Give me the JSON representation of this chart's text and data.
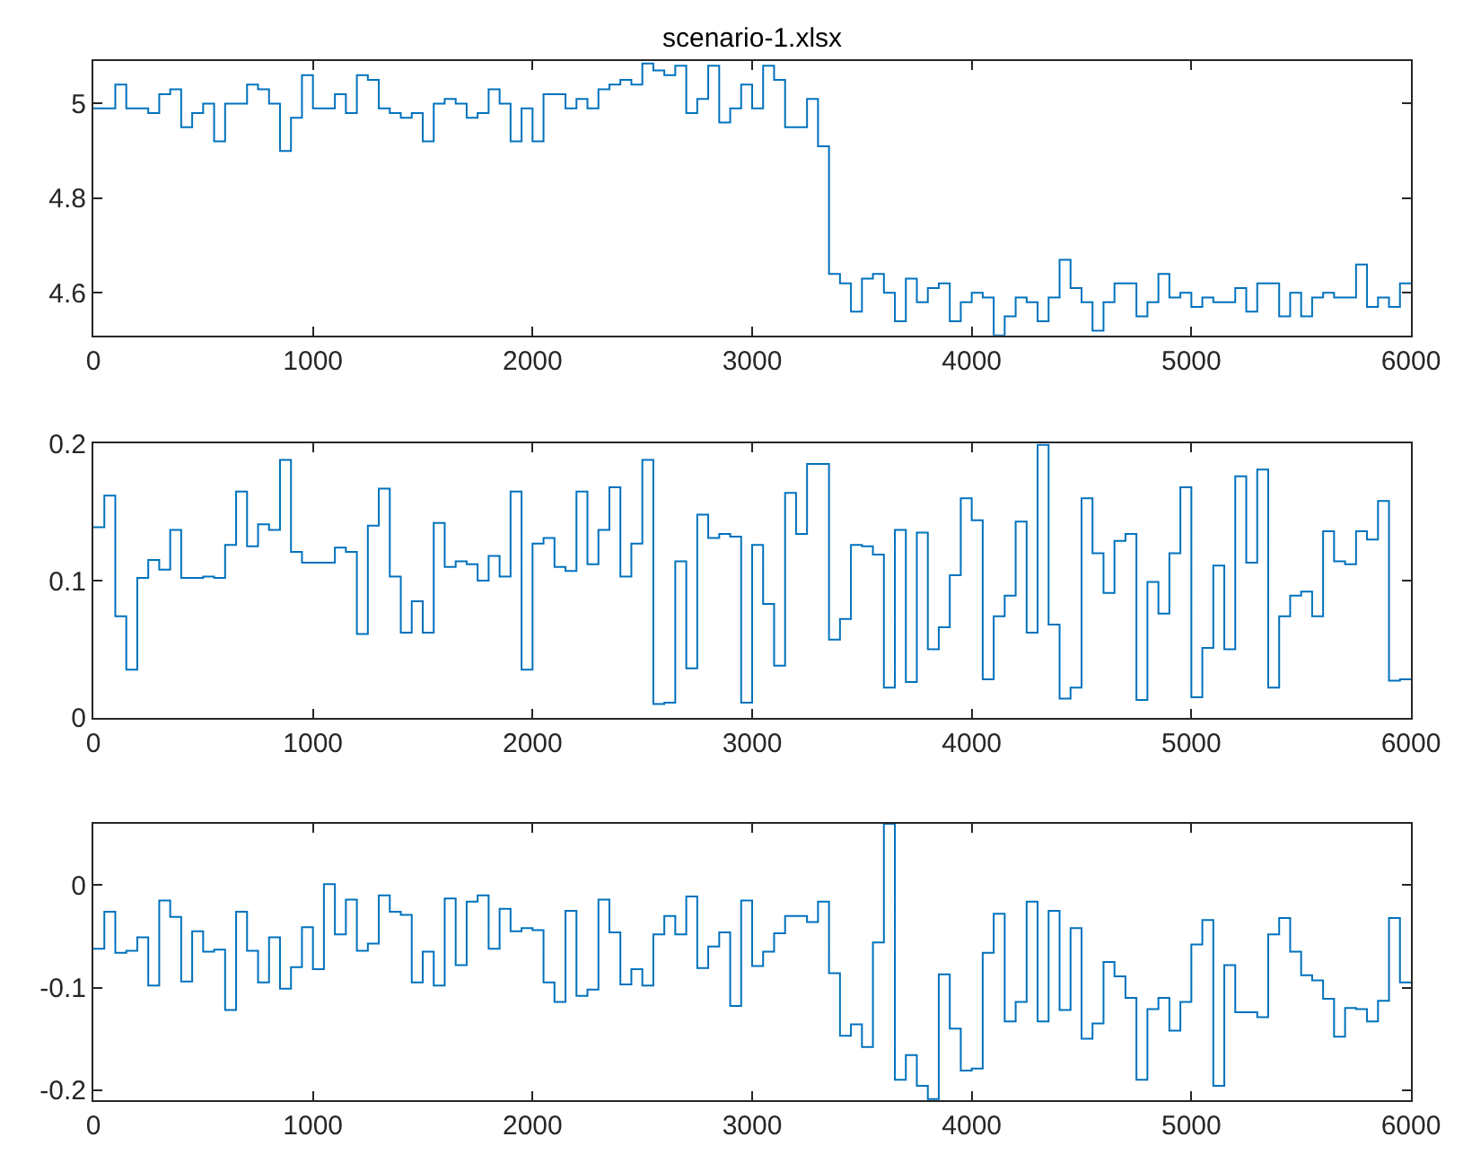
{
  "chart_data": [
    {
      "type": "step",
      "title": "scenario-1.xlsx",
      "color": "#0072bd",
      "xlim": [
        0,
        6000
      ],
      "xticks": [
        0,
        1000,
        2000,
        3000,
        4000,
        5000,
        6000
      ],
      "ylim": [
        4.51,
        5.09
      ],
      "yticks": [
        4.6,
        4.8,
        5
      ],
      "x": [
        0,
        50,
        100,
        150,
        200,
        250,
        300,
        350,
        400,
        450,
        500,
        550,
        600,
        650,
        700,
        750,
        800,
        850,
        900,
        950,
        1000,
        1050,
        1100,
        1150,
        1200,
        1250,
        1300,
        1350,
        1400,
        1450,
        1500,
        1550,
        1600,
        1650,
        1700,
        1750,
        1800,
        1850,
        1900,
        1950,
        2000,
        2050,
        2100,
        2150,
        2200,
        2250,
        2300,
        2350,
        2400,
        2450,
        2500,
        2550,
        2600,
        2650,
        2700,
        2750,
        2800,
        2850,
        2900,
        2950,
        3000,
        3050,
        3100,
        3150,
        3200,
        3250,
        3300,
        3350,
        3400,
        3450,
        3500,
        3550,
        3600,
        3650,
        3700,
        3750,
        3800,
        3850,
        3900,
        3950,
        4000,
        4050,
        4100,
        4150,
        4200,
        4250,
        4300,
        4350,
        4400,
        4450,
        4500,
        4550,
        4600,
        4650,
        4700,
        4750,
        4800,
        4850,
        4900,
        4950,
        5000,
        5050,
        5100,
        5150,
        5200,
        5250,
        5300,
        5350,
        5400,
        5450,
        5500,
        5550,
        5600,
        5650,
        5700,
        5750,
        5800,
        5850,
        5900,
        5950,
        6000
      ],
      "values": [
        4.99,
        4.99,
        5.04,
        4.99,
        4.99,
        4.98,
        5.02,
        5.03,
        4.95,
        4.98,
        5.0,
        4.92,
        5.0,
        5.0,
        5.04,
        5.03,
        5.0,
        4.9,
        4.97,
        5.06,
        4.99,
        4.99,
        5.02,
        4.98,
        5.06,
        5.05,
        4.99,
        4.98,
        4.97,
        4.98,
        4.92,
        5.0,
        5.01,
        5.0,
        4.97,
        4.98,
        5.03,
        5.0,
        4.92,
        4.99,
        4.92,
        5.02,
        5.02,
        4.99,
        5.01,
        4.99,
        5.03,
        5.04,
        5.05,
        5.04,
        5.085,
        5.07,
        5.06,
        5.08,
        4.98,
        5.01,
        5.08,
        4.96,
        4.99,
        5.04,
        4.99,
        5.08,
        5.05,
        4.95,
        4.95,
        5.01,
        4.91,
        4.64,
        4.62,
        4.56,
        4.63,
        4.64,
        4.6,
        4.54,
        4.63,
        4.58,
        4.61,
        4.62,
        4.54,
        4.58,
        4.6,
        4.59,
        4.51,
        4.55,
        4.59,
        4.58,
        4.54,
        4.59,
        4.67,
        4.61,
        4.58,
        4.52,
        4.58,
        4.62,
        4.62,
        4.55,
        4.58,
        4.64,
        4.59,
        4.6,
        4.57,
        4.59,
        4.58,
        4.58,
        4.61,
        4.56,
        4.62,
        4.62,
        4.55,
        4.6,
        4.55,
        4.59,
        4.6,
        4.59,
        4.59,
        4.66,
        4.57,
        4.59,
        4.57,
        4.62,
        4.62
      ]
    },
    {
      "type": "step",
      "color": "#0072bd",
      "xlim": [
        0,
        6000
      ],
      "xticks": [
        0,
        1000,
        2000,
        3000,
        4000,
        5000,
        6000
      ],
      "ylim": [
        0,
        0.2
      ],
      "yticks": [
        0,
        0.1,
        0.2
      ],
      "x": [
        0,
        50,
        100,
        150,
        200,
        250,
        300,
        350,
        400,
        450,
        500,
        550,
        600,
        650,
        700,
        750,
        800,
        850,
        900,
        950,
        1000,
        1050,
        1100,
        1150,
        1200,
        1250,
        1300,
        1350,
        1400,
        1450,
        1500,
        1550,
        1600,
        1650,
        1700,
        1750,
        1800,
        1850,
        1900,
        1950,
        2000,
        2050,
        2100,
        2150,
        2200,
        2250,
        2300,
        2350,
        2400,
        2450,
        2500,
        2550,
        2600,
        2650,
        2700,
        2750,
        2800,
        2850,
        2900,
        2950,
        3000,
        3050,
        3100,
        3150,
        3200,
        3250,
        3300,
        3350,
        3400,
        3450,
        3500,
        3550,
        3600,
        3650,
        3700,
        3750,
        3800,
        3850,
        3900,
        3950,
        4000,
        4050,
        4100,
        4150,
        4200,
        4250,
        4300,
        4350,
        4400,
        4450,
        4500,
        4550,
        4600,
        4650,
        4700,
        4750,
        4800,
        4850,
        4900,
        4950,
        5000,
        5050,
        5100,
        5150,
        5200,
        5250,
        5300,
        5350,
        5400,
        5450,
        5500,
        5550,
        5600,
        5650,
        5700,
        5750,
        5800,
        5850,
        5900,
        5950,
        6000
      ],
      "values": [
        0.139,
        0.162,
        0.074,
        0.035,
        0.102,
        0.115,
        0.108,
        0.137,
        0.102,
        0.102,
        0.103,
        0.102,
        0.126,
        0.165,
        0.125,
        0.141,
        0.137,
        0.188,
        0.121,
        0.113,
        0.113,
        0.113,
        0.124,
        0.121,
        0.061,
        0.14,
        0.167,
        0.103,
        0.062,
        0.085,
        0.062,
        0.142,
        0.11,
        0.114,
        0.112,
        0.1,
        0.118,
        0.103,
        0.165,
        0.035,
        0.127,
        0.131,
        0.11,
        0.107,
        0.165,
        0.112,
        0.137,
        0.168,
        0.103,
        0.127,
        0.188,
        0.01,
        0.011,
        0.114,
        0.036,
        0.148,
        0.131,
        0.134,
        0.132,
        0.011,
        0.126,
        0.083,
        0.038,
        0.164,
        0.134,
        0.185,
        0.185,
        0.057,
        0.072,
        0.126,
        0.125,
        0.119,
        0.022,
        0.137,
        0.026,
        0.135,
        0.05,
        0.066,
        0.104,
        0.16,
        0.144,
        0.028,
        0.074,
        0.089,
        0.143,
        0.062,
        0.199,
        0.068,
        0.014,
        0.022,
        0.16,
        0.12,
        0.091,
        0.129,
        0.134,
        0.013,
        0.099,
        0.076,
        0.12,
        0.168,
        0.015,
        0.051,
        0.111,
        0.05,
        0.176,
        0.113,
        0.181,
        0.022,
        0.074,
        0.089,
        0.092,
        0.074,
        0.136,
        0.114,
        0.112,
        0.136,
        0.13,
        0.158,
        0.027,
        0.028,
        0.028
      ]
    },
    {
      "type": "step",
      "color": "#0072bd",
      "xlim": [
        0,
        6000
      ],
      "xticks": [
        0,
        1000,
        2000,
        3000,
        4000,
        5000,
        6000
      ],
      "ylim": [
        -0.21,
        0.06
      ],
      "yticks": [
        -0.2,
        -0.1,
        0
      ],
      "x": [
        0,
        50,
        100,
        150,
        200,
        250,
        300,
        350,
        400,
        450,
        500,
        550,
        600,
        650,
        700,
        750,
        800,
        850,
        900,
        950,
        1000,
        1050,
        1100,
        1150,
        1200,
        1250,
        1300,
        1350,
        1400,
        1450,
        1500,
        1550,
        1600,
        1650,
        1700,
        1750,
        1800,
        1850,
        1900,
        1950,
        2000,
        2050,
        2100,
        2150,
        2200,
        2250,
        2300,
        2350,
        2400,
        2450,
        2500,
        2550,
        2600,
        2650,
        2700,
        2750,
        2800,
        2850,
        2900,
        2950,
        3000,
        3050,
        3100,
        3150,
        3200,
        3250,
        3300,
        3350,
        3400,
        3450,
        3500,
        3550,
        3600,
        3650,
        3700,
        3750,
        3800,
        3850,
        3900,
        3950,
        4000,
        4050,
        4100,
        4150,
        4200,
        4250,
        4300,
        4350,
        4400,
        4450,
        4500,
        4550,
        4600,
        4650,
        4700,
        4750,
        4800,
        4850,
        4900,
        4950,
        5000,
        5050,
        5100,
        5150,
        5200,
        5250,
        5300,
        5350,
        5400,
        5450,
        5500,
        5550,
        5600,
        5650,
        5700,
        5750,
        5800,
        5850,
        5900,
        5950,
        6000
      ],
      "values": [
        -0.062,
        -0.026,
        -0.066,
        -0.064,
        -0.051,
        -0.098,
        -0.015,
        -0.031,
        -0.094,
        -0.045,
        -0.065,
        -0.063,
        -0.122,
        -0.026,
        -0.064,
        -0.095,
        -0.051,
        -0.101,
        -0.08,
        -0.041,
        -0.082,
        0.001,
        -0.048,
        -0.014,
        -0.064,
        -0.057,
        -0.01,
        -0.026,
        -0.029,
        -0.095,
        -0.065,
        -0.098,
        -0.013,
        -0.078,
        -0.016,
        -0.01,
        -0.062,
        -0.023,
        -0.045,
        -0.042,
        -0.044,
        -0.095,
        -0.114,
        -0.025,
        -0.108,
        -0.102,
        -0.014,
        -0.046,
        -0.097,
        -0.082,
        -0.098,
        -0.048,
        -0.03,
        -0.048,
        -0.011,
        -0.081,
        -0.06,
        -0.046,
        -0.118,
        -0.015,
        -0.079,
        -0.065,
        -0.047,
        -0.03,
        -0.03,
        -0.036,
        -0.016,
        -0.086,
        -0.147,
        -0.136,
        -0.158,
        -0.056,
        0.06,
        -0.19,
        -0.166,
        -0.196,
        -0.209,
        -0.087,
        -0.14,
        -0.181,
        -0.179,
        -0.066,
        -0.028,
        -0.133,
        -0.114,
        -0.016,
        -0.133,
        -0.025,
        -0.122,
        -0.042,
        -0.15,
        -0.135,
        -0.075,
        -0.089,
        -0.11,
        -0.19,
        -0.121,
        -0.11,
        -0.142,
        -0.114,
        -0.058,
        -0.034,
        -0.196,
        -0.078,
        -0.124,
        -0.124,
        -0.129,
        -0.048,
        -0.032,
        -0.065,
        -0.088,
        -0.093,
        -0.111,
        -0.148,
        -0.12,
        -0.121,
        -0.133,
        -0.113,
        -0.032,
        -0.095,
        -0.095
      ]
    }
  ]
}
